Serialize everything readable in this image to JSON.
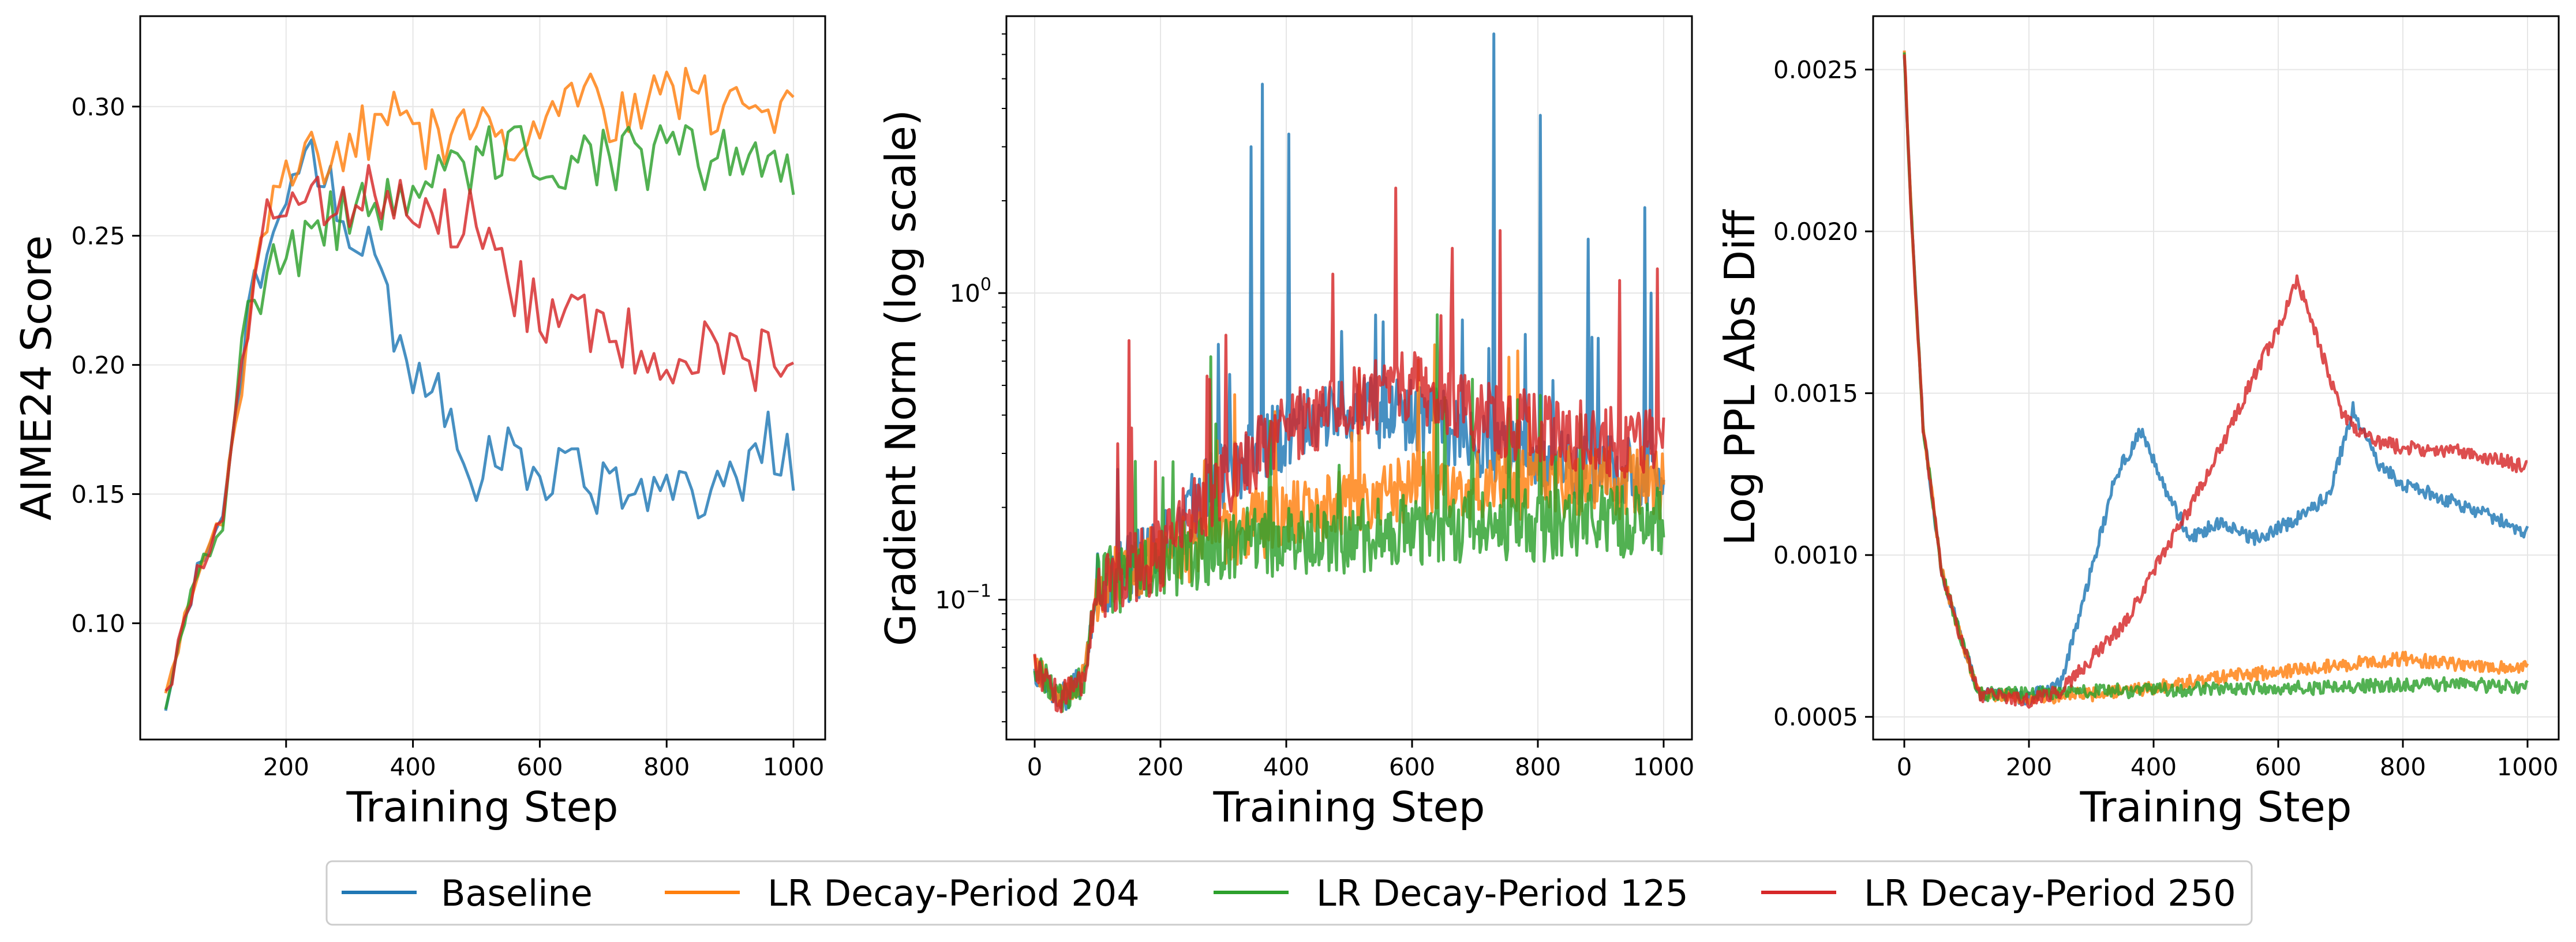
{
  "legend": {
    "placement": "bottom-center",
    "entries": [
      {
        "label": "Baseline",
        "color": "#1f77b4"
      },
      {
        "label": "LR Decay-Period 204",
        "color": "#ff7f0e"
      },
      {
        "label": "LR Decay-Period 125",
        "color": "#2ca02c"
      },
      {
        "label": "LR Decay-Period 250",
        "color": "#d62728"
      }
    ]
  },
  "chart_data": [
    {
      "type": "line",
      "title": "",
      "xlabel": "Training Step",
      "ylabel": "AIME24 Score",
      "xlim": [
        -30,
        1050
      ],
      "ylim": [
        0.055,
        0.335
      ],
      "yscale": "linear",
      "grid": true,
      "xticks": [
        {
          "value": 200,
          "label": "200"
        },
        {
          "value": 400,
          "label": "400"
        },
        {
          "value": 600,
          "label": "600"
        },
        {
          "value": 800,
          "label": "800"
        },
        {
          "value": 1000,
          "label": "1000"
        }
      ],
      "yticks": [
        {
          "value": 0.1,
          "label": "0.10"
        },
        {
          "value": 0.15,
          "label": "0.15"
        },
        {
          "value": 0.2,
          "label": "0.20"
        },
        {
          "value": 0.25,
          "label": "0.25"
        },
        {
          "value": 0.3,
          "label": "0.30"
        }
      ],
      "generator": "aime",
      "series": [
        {
          "name": "Baseline",
          "color": "#1f77b4",
          "x": [
            10,
            60,
            100,
            140,
            180,
            220,
            260,
            300,
            340,
            380,
            420,
            460,
            500,
            560,
            620,
            680,
            740,
            800,
            860,
            920,
            960,
            1000
          ],
          "y": [
            0.07,
            0.12,
            0.14,
            0.22,
            0.26,
            0.27,
            0.28,
            0.25,
            0.24,
            0.21,
            0.19,
            0.18,
            0.16,
            0.165,
            0.16,
            0.155,
            0.15,
            0.145,
            0.15,
            0.16,
            0.17,
            0.16
          ]
        },
        {
          "name": "LR Decay-Period 204",
          "color": "#ff7f0e",
          "x": [
            10,
            60,
            100,
            140,
            180,
            220,
            260,
            300,
            340,
            380,
            420,
            460,
            500,
            560,
            620,
            680,
            740,
            800,
            860,
            920,
            960,
            1000
          ],
          "y": [
            0.07,
            0.12,
            0.14,
            0.22,
            0.26,
            0.275,
            0.28,
            0.285,
            0.29,
            0.295,
            0.285,
            0.29,
            0.295,
            0.29,
            0.295,
            0.3,
            0.295,
            0.305,
            0.3,
            0.295,
            0.3,
            0.31
          ]
        },
        {
          "name": "LR Decay-Period 125",
          "color": "#2ca02c",
          "x": [
            10,
            60,
            100,
            140,
            180,
            220,
            260,
            300,
            340,
            380,
            420,
            460,
            500,
            560,
            620,
            680,
            740,
            800,
            860,
            920,
            960,
            1000
          ],
          "y": [
            0.07,
            0.12,
            0.14,
            0.22,
            0.235,
            0.245,
            0.255,
            0.26,
            0.265,
            0.265,
            0.27,
            0.27,
            0.28,
            0.28,
            0.28,
            0.28,
            0.28,
            0.28,
            0.28,
            0.28,
            0.285,
            0.275
          ]
        },
        {
          "name": "LR Decay-Period 250",
          "color": "#d62728",
          "x": [
            10,
            60,
            100,
            140,
            180,
            220,
            260,
            300,
            340,
            380,
            420,
            460,
            500,
            560,
            620,
            680,
            740,
            800,
            860,
            920,
            960,
            1000
          ],
          "y": [
            0.07,
            0.12,
            0.14,
            0.22,
            0.265,
            0.27,
            0.265,
            0.265,
            0.265,
            0.26,
            0.255,
            0.255,
            0.255,
            0.23,
            0.215,
            0.215,
            0.21,
            0.205,
            0.205,
            0.205,
            0.2,
            0.19
          ]
        }
      ]
    },
    {
      "type": "line",
      "title": "",
      "xlabel": "Training Step",
      "ylabel": "Gradient Norm (log scale)",
      "xlim": [
        -45,
        1045
      ],
      "ylim": [
        0.035,
        8.0
      ],
      "yscale": "log",
      "grid": true,
      "xticks": [
        {
          "value": 0,
          "label": "0"
        },
        {
          "value": 200,
          "label": "200"
        },
        {
          "value": 400,
          "label": "400"
        },
        {
          "value": 600,
          "label": "600"
        },
        {
          "value": 800,
          "label": "800"
        },
        {
          "value": 1000,
          "label": "1000"
        }
      ],
      "yticks": [
        {
          "value": 0.1,
          "base": "10",
          "exp": "−1"
        },
        {
          "value": 1,
          "base": "10",
          "exp": "0"
        }
      ],
      "generator": "gradnorm",
      "series": [
        {
          "name": "Baseline",
          "color": "#1f77b4",
          "x": [
            0,
            40,
            80,
            100,
            200,
            300,
            400,
            500,
            600,
            700,
            800,
            900,
            1000
          ],
          "y": [
            0.06,
            0.047,
            0.055,
            0.11,
            0.14,
            0.25,
            0.35,
            0.42,
            0.4,
            0.33,
            0.28,
            0.26,
            0.25
          ],
          "spikes": [
            {
              "x": 345,
              "y": 3.0
            },
            {
              "x": 362,
              "y": 4.8
            },
            {
              "x": 405,
              "y": 3.3
            },
            {
              "x": 730,
              "y": 7.0
            },
            {
              "x": 805,
              "y": 3.8
            },
            {
              "x": 880,
              "y": 1.5
            },
            {
              "x": 970,
              "y": 1.9
            },
            {
              "x": 980,
              "y": 1.0
            }
          ]
        },
        {
          "name": "LR Decay-Period 204",
          "color": "#ff7f0e",
          "x": [
            0,
            40,
            80,
            100,
            200,
            300,
            400,
            500,
            600,
            700,
            800,
            900,
            1000
          ],
          "y": [
            0.06,
            0.047,
            0.055,
            0.11,
            0.14,
            0.16,
            0.19,
            0.21,
            0.23,
            0.24,
            0.24,
            0.24,
            0.24
          ],
          "spikes": [
            {
              "x": 290,
              "y": 0.33
            },
            {
              "x": 505,
              "y": 0.35
            }
          ]
        },
        {
          "name": "LR Decay-Period 125",
          "color": "#2ca02c",
          "x": [
            0,
            40,
            80,
            100,
            200,
            300,
            400,
            500,
            600,
            700,
            800,
            900,
            1000
          ],
          "y": [
            0.06,
            0.047,
            0.055,
            0.11,
            0.13,
            0.15,
            0.155,
            0.16,
            0.17,
            0.175,
            0.175,
            0.18,
            0.18
          ],
          "spikes": [
            {
              "x": 205,
              "y": 0.25
            },
            {
              "x": 280,
              "y": 0.62
            },
            {
              "x": 640,
              "y": 0.85
            }
          ]
        },
        {
          "name": "LR Decay-Period 250",
          "color": "#d62728",
          "x": [
            0,
            40,
            80,
            100,
            200,
            300,
            400,
            500,
            600,
            700,
            800,
            900,
            1000
          ],
          "y": [
            0.06,
            0.047,
            0.055,
            0.11,
            0.14,
            0.24,
            0.36,
            0.43,
            0.5,
            0.4,
            0.36,
            0.33,
            0.32
          ],
          "spikes": [
            {
              "x": 150,
              "y": 0.7
            },
            {
              "x": 575,
              "y": 2.2
            },
            {
              "x": 665,
              "y": 1.4
            },
            {
              "x": 740,
              "y": 1.6
            },
            {
              "x": 930,
              "y": 1.1
            },
            {
              "x": 990,
              "y": 1.2
            }
          ]
        }
      ]
    },
    {
      "type": "line",
      "title": "",
      "xlabel": "Training Step",
      "ylabel": "Log PPL Abs Diff",
      "xlim": [
        -50,
        1050
      ],
      "ylim": [
        0.00043,
        0.002665
      ],
      "yscale": "linear",
      "grid": true,
      "xticks": [
        {
          "value": 0,
          "label": "0"
        },
        {
          "value": 200,
          "label": "200"
        },
        {
          "value": 400,
          "label": "400"
        },
        {
          "value": 600,
          "label": "600"
        },
        {
          "value": 800,
          "label": "800"
        },
        {
          "value": 1000,
          "label": "1000"
        }
      ],
      "yticks": [
        {
          "value": 0.0005,
          "label": "0.0005"
        },
        {
          "value": 0.001,
          "label": "0.0010"
        },
        {
          "value": 0.0015,
          "label": "0.0015"
        },
        {
          "value": 0.002,
          "label": "0.0020"
        },
        {
          "value": 0.0025,
          "label": "0.0025"
        }
      ],
      "generator": "ppl",
      "series": [
        {
          "name": "Baseline",
          "color": "#1f77b4",
          "x": [
            0,
            10,
            30,
            60,
            90,
            120,
            200,
            250,
            300,
            340,
            380,
            420,
            460,
            500,
            560,
            620,
            680,
            720,
            760,
            800,
            900,
            1000
          ],
          "y": [
            0.00255,
            0.0021,
            0.0014,
            0.00095,
            0.00075,
            0.00057,
            0.00056,
            0.0006,
            0.00095,
            0.00125,
            0.00138,
            0.0012,
            0.00105,
            0.0011,
            0.00105,
            0.0011,
            0.00118,
            0.00145,
            0.00128,
            0.00122,
            0.00115,
            0.00107
          ]
        },
        {
          "name": "LR Decay-Period 204",
          "color": "#ff7f0e",
          "x": [
            0,
            10,
            30,
            60,
            90,
            120,
            200,
            300,
            400,
            500,
            600,
            700,
            800,
            900,
            1000
          ],
          "y": [
            0.00255,
            0.0021,
            0.0014,
            0.00095,
            0.00075,
            0.00057,
            0.00056,
            0.00057,
            0.00059,
            0.00062,
            0.00064,
            0.00066,
            0.00068,
            0.00066,
            0.00065
          ]
        },
        {
          "name": "LR Decay-Period 125",
          "color": "#2ca02c",
          "x": [
            0,
            10,
            30,
            60,
            90,
            120,
            200,
            300,
            400,
            500,
            600,
            700,
            800,
            900,
            1000
          ],
          "y": [
            0.00255,
            0.0021,
            0.0014,
            0.00095,
            0.00075,
            0.00057,
            0.00057,
            0.00058,
            0.00058,
            0.00059,
            0.00059,
            0.00059,
            0.0006,
            0.0006,
            0.00059
          ]
        },
        {
          "name": "LR Decay-Period 250",
          "color": "#d62728",
          "x": [
            0,
            10,
            30,
            60,
            90,
            120,
            200,
            250,
            300,
            350,
            400,
            460,
            500,
            560,
            600,
            630,
            660,
            700,
            720,
            760,
            800,
            900,
            1000
          ],
          "y": [
            0.00255,
            0.0021,
            0.0014,
            0.00095,
            0.00075,
            0.00057,
            0.00055,
            0.00058,
            0.00068,
            0.00078,
            0.00095,
            0.00115,
            0.0013,
            0.00155,
            0.0017,
            0.00185,
            0.00168,
            0.00145,
            0.0014,
            0.00135,
            0.00133,
            0.00132,
            0.00127
          ]
        }
      ]
    }
  ]
}
